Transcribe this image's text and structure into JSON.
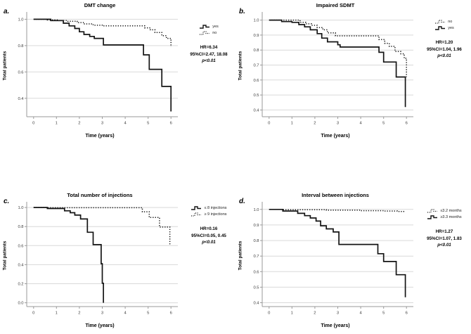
{
  "figure": {
    "colors": {
      "curve": "#141414",
      "grid": "#d9d9d9",
      "axis": "#9a9a9a",
      "tick_text": "#3a3a3a"
    }
  },
  "panels": [
    {
      "letter": "a.",
      "title": "DMT change",
      "ylabel": "Total patients",
      "xlabel": "Time (years)",
      "legend": [
        {
          "label": "yes",
          "style": "solid"
        },
        {
          "label": "no",
          "style": "dotted"
        }
      ],
      "stats": {
        "hr": "HR=6.34",
        "ci": "95%CI=2.47, 18.08",
        "p": "p<0.01"
      }
    },
    {
      "letter": "b.",
      "title": "Impaired SDMT",
      "ylabel": "Total patients",
      "xlabel": "Time (years)",
      "legend": [
        {
          "label": "no",
          "style": "dotted"
        },
        {
          "label": "yes",
          "style": "solid"
        }
      ],
      "stats": {
        "hr": "HR=1.20",
        "ci": "95%CI=1.04, 1.96",
        "p": "p<0.01"
      }
    },
    {
      "letter": "c.",
      "title": "Total number of injections",
      "ylabel": "Total patients",
      "xlabel": "Time (years)",
      "legend": [
        {
          "label": "≤ 8 injections",
          "style": "solid"
        },
        {
          "label": "≥ 9 injections",
          "style": "dotted"
        }
      ],
      "stats": {
        "hr": "HR=0.16",
        "ci": "95%CI=0.05, 0.45",
        "p": "p<0.01"
      }
    },
    {
      "letter": "d.",
      "title": "Interval between injections",
      "ylabel": "Total patients",
      "xlabel": "Time (years)",
      "legend": [
        {
          "label": "≤3.2 months",
          "style": "dotted"
        },
        {
          "label": "≥3.3 months",
          "style": "solid"
        }
      ],
      "stats": {
        "hr": "HR=1.27",
        "ci": "95%CI=1.07, 1.83",
        "p": "p<0.01"
      }
    }
  ],
  "chart_data": [
    {
      "type": "line",
      "subtype": "kaplan-meier-step",
      "title": "DMT change",
      "xlabel": "Time (years)",
      "ylabel": "Total patients",
      "xlim": [
        -0.3,
        6.3
      ],
      "ylim": [
        0.26,
        1.045
      ],
      "xticks": [
        0,
        1,
        2,
        3,
        4,
        5,
        6
      ],
      "xtick_labels": [
        "0",
        "1",
        "2",
        "3",
        "4",
        "5",
        "6"
      ],
      "yticks": [
        0.4,
        0.6,
        0.8,
        1.0
      ],
      "ytick_labels": [
        "0.4",
        "0.6",
        "0.8",
        "1.0"
      ],
      "grid": true,
      "legend_position": "right",
      "series": [
        {
          "name": "yes",
          "style": "solid",
          "points": [
            [
              0,
              1.0
            ],
            [
              0.75,
              0.99
            ],
            [
              1.3,
              0.97
            ],
            [
              1.55,
              0.95
            ],
            [
              1.8,
              0.93
            ],
            [
              2.0,
              0.905
            ],
            [
              2.2,
              0.885
            ],
            [
              2.45,
              0.87
            ],
            [
              2.65,
              0.855
            ],
            [
              3.05,
              0.805
            ],
            [
              4.8,
              0.73
            ],
            [
              5.05,
              0.62
            ],
            [
              5.6,
              0.49
            ],
            [
              6.0,
              0.3
            ]
          ]
        },
        {
          "name": "no",
          "style": "dotted",
          "points": [
            [
              0,
              1.0
            ],
            [
              0.6,
              0.995
            ],
            [
              1.1,
              0.99
            ],
            [
              1.5,
              0.985
            ],
            [
              1.9,
              0.975
            ],
            [
              2.2,
              0.965
            ],
            [
              2.6,
              0.955
            ],
            [
              3.0,
              0.95
            ],
            [
              4.85,
              0.935
            ],
            [
              5.1,
              0.92
            ],
            [
              5.3,
              0.9
            ],
            [
              5.6,
              0.875
            ],
            [
              5.8,
              0.855
            ],
            [
              6.0,
              0.79
            ]
          ]
        }
      ]
    },
    {
      "type": "line",
      "subtype": "kaplan-meier-step",
      "title": "Impaired SDMT",
      "xlabel": "Time (years)",
      "ylabel": "Total patients",
      "xlim": [
        -0.3,
        6.3
      ],
      "ylim": [
        0.355,
        1.045
      ],
      "xticks": [
        0,
        1,
        2,
        3,
        4,
        5,
        6
      ],
      "xtick_labels": [
        "0",
        "1",
        "2",
        "3",
        "4",
        "5",
        "6"
      ],
      "yticks": [
        0.4,
        0.5,
        0.6,
        0.7,
        0.8,
        0.9,
        1.0
      ],
      "ytick_labels": [
        "0.4",
        "0.5",
        "0.6",
        "0.7",
        "0.8",
        "0.9",
        "1.0"
      ],
      "grid": true,
      "legend_position": "right",
      "series": [
        {
          "name": "no",
          "style": "dotted",
          "points": [
            [
              0,
              1.0
            ],
            [
              1.35,
              0.985
            ],
            [
              1.6,
              0.975
            ],
            [
              1.85,
              0.965
            ],
            [
              2.1,
              0.95
            ],
            [
              2.35,
              0.935
            ],
            [
              2.55,
              0.915
            ],
            [
              2.9,
              0.895
            ],
            [
              4.8,
              0.87
            ],
            [
              5.05,
              0.845
            ],
            [
              5.25,
              0.825
            ],
            [
              5.5,
              0.79
            ],
            [
              5.75,
              0.775
            ],
            [
              5.9,
              0.745
            ],
            [
              6.0,
              0.62
            ]
          ]
        },
        {
          "name": "yes",
          "style": "solid",
          "points": [
            [
              0,
              1.0
            ],
            [
              0.55,
              0.99
            ],
            [
              1.0,
              0.985
            ],
            [
              1.3,
              0.97
            ],
            [
              1.55,
              0.955
            ],
            [
              1.8,
              0.935
            ],
            [
              2.1,
              0.91
            ],
            [
              2.3,
              0.88
            ],
            [
              2.55,
              0.855
            ],
            [
              3.0,
              0.835
            ],
            [
              3.1,
              0.82
            ],
            [
              4.8,
              0.785
            ],
            [
              5.0,
              0.72
            ],
            [
              5.55,
              0.62
            ],
            [
              5.95,
              0.42
            ]
          ]
        }
      ]
    },
    {
      "type": "line",
      "subtype": "kaplan-meier-step",
      "title": "Total number of injections",
      "xlabel": "Time (years)",
      "ylabel": "Total patients",
      "xlim": [
        -0.3,
        6.3
      ],
      "ylim": [
        -0.04,
        1.045
      ],
      "xticks": [
        0,
        1,
        2,
        3,
        4,
        5,
        6
      ],
      "xtick_labels": [
        "0",
        "1",
        "2",
        "3",
        "4",
        "5",
        "6"
      ],
      "yticks": [
        0.0,
        0.2,
        0.4,
        0.6,
        0.8,
        1.0
      ],
      "ytick_labels": [
        "0.0",
        "0.2",
        "0.4",
        "0.6",
        "0.8",
        "1.0"
      ],
      "grid": true,
      "legend_position": "right",
      "series": [
        {
          "name": "≤ 8 injections",
          "style": "solid",
          "points": [
            [
              0,
              1.0
            ],
            [
              0.6,
              0.99
            ],
            [
              1.35,
              0.965
            ],
            [
              1.6,
              0.945
            ],
            [
              1.8,
              0.92
            ],
            [
              2.05,
              0.88
            ],
            [
              2.35,
              0.74
            ],
            [
              2.6,
              0.61
            ],
            [
              2.95,
              0.41
            ],
            [
              3.0,
              0.205
            ],
            [
              3.05,
              0.0
            ]
          ]
        },
        {
          "name": "≥ 9 injections",
          "style": "dotted",
          "points": [
            [
              0,
              1.0
            ],
            [
              0.6,
              0.998
            ],
            [
              4.75,
              0.955
            ],
            [
              5.05,
              0.895
            ],
            [
              5.5,
              0.795
            ],
            [
              5.95,
              0.6
            ]
          ]
        }
      ]
    },
    {
      "type": "line",
      "subtype": "kaplan-meier-step",
      "title": "Interval between injections",
      "xlabel": "Time (years)",
      "ylabel": "Total patients",
      "xlim": [
        -0.3,
        6.3
      ],
      "ylim": [
        0.375,
        1.04
      ],
      "xticks": [
        0,
        1,
        2,
        3,
        4,
        5,
        6
      ],
      "xtick_labels": [
        "0",
        "1",
        "2",
        "3",
        "4",
        "5",
        "6"
      ],
      "yticks": [
        0.4,
        0.5,
        0.6,
        0.7,
        0.8,
        0.9,
        1.0
      ],
      "ytick_labels": [
        "0.4",
        "0.5",
        "0.6",
        "0.7",
        "0.8",
        "0.9",
        "1.0"
      ],
      "grid": true,
      "legend_position": "right",
      "series": [
        {
          "name": "≤3.2 months",
          "style": "dotted",
          "points": [
            [
              0,
              1.0
            ],
            [
              0.6,
              0.998
            ],
            [
              2.5,
              0.995
            ],
            [
              4.0,
              0.992
            ],
            [
              5.0,
              0.99
            ],
            [
              5.6,
              0.987
            ],
            [
              5.9,
              0.982
            ]
          ]
        },
        {
          "name": "≥3.3 months",
          "style": "solid",
          "points": [
            [
              0,
              1.0
            ],
            [
              0.6,
              0.99
            ],
            [
              1.25,
              0.975
            ],
            [
              1.55,
              0.96
            ],
            [
              1.8,
              0.945
            ],
            [
              2.05,
              0.925
            ],
            [
              2.25,
              0.895
            ],
            [
              2.5,
              0.875
            ],
            [
              2.8,
              0.855
            ],
            [
              3.05,
              0.775
            ],
            [
              4.75,
              0.715
            ],
            [
              5.0,
              0.665
            ],
            [
              5.55,
              0.58
            ],
            [
              5.95,
              0.435
            ]
          ]
        }
      ]
    }
  ]
}
